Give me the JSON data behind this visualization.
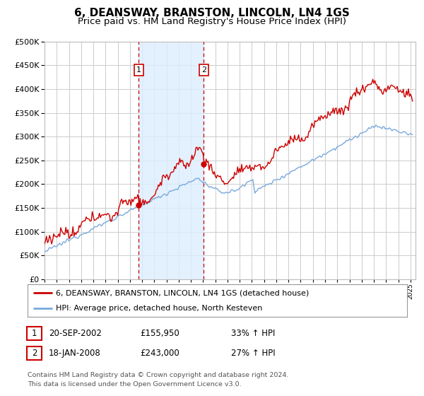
{
  "title": "6, DEANSWAY, BRANSTON, LINCOLN, LN4 1GS",
  "subtitle": "Price paid vs. HM Land Registry's House Price Index (HPI)",
  "title_fontsize": 11,
  "subtitle_fontsize": 9.5,
  "background_color": "#ffffff",
  "plot_bg_color": "#ffffff",
  "grid_color": "#cccccc",
  "ylim": [
    0,
    500000
  ],
  "yticks": [
    0,
    50000,
    100000,
    150000,
    200000,
    250000,
    300000,
    350000,
    400000,
    450000,
    500000
  ],
  "sale1_date": "2002-09-20",
  "sale1_price": 155950,
  "sale2_date": "2008-01-18",
  "sale2_price": 243000,
  "legend_line1": "6, DEANSWAY, BRANSTON, LINCOLN, LN4 1GS (detached house)",
  "legend_line2": "HPI: Average price, detached house, North Kesteven",
  "footer1": "Contains HM Land Registry data © Crown copyright and database right 2024.",
  "footer2": "This data is licensed under the Open Government Licence v3.0.",
  "hpi_color": "#7aaadd",
  "price_color": "#cc0000",
  "shade_color": "#ddeeff",
  "annotation_box_color": "#cc0000",
  "dashed_line_color": "#cc0000",
  "x_start_year": 1995,
  "x_end_year": 2025
}
